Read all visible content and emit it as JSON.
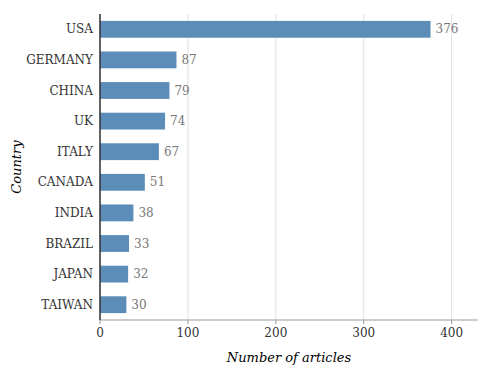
{
  "chart_data": {
    "type": "bar",
    "orientation": "horizontal",
    "categories": [
      "USA",
      "GERMANY",
      "CHINA",
      "UK",
      "ITALY",
      "CANADA",
      "INDIA",
      "BRAZIL",
      "JAPAN",
      "TAIWAN"
    ],
    "values": [
      376,
      87,
      79,
      74,
      67,
      51,
      38,
      33,
      32,
      30
    ],
    "color": "#5b8db8",
    "xlabel": "Number of articles",
    "ylabel": "Country",
    "xlim": [
      0,
      430
    ],
    "xticks": [
      0,
      100,
      200,
      300,
      400
    ],
    "grid": true,
    "data_labels": true
  }
}
